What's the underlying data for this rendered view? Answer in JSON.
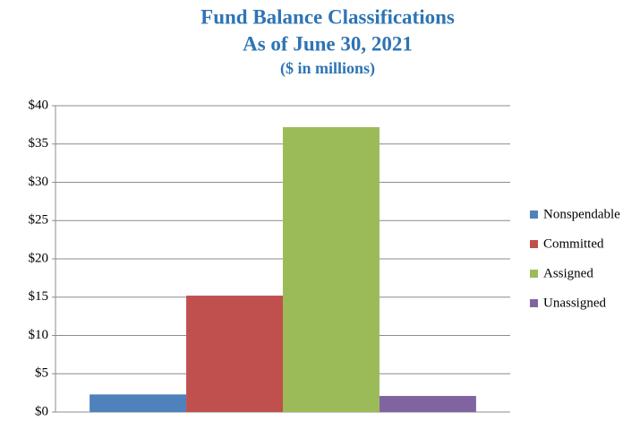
{
  "chart_data": {
    "type": "bar",
    "title": [
      "Fund Balance Classifications",
      "As of June 30, 2021",
      "($ in millions)"
    ],
    "categories": [
      null
    ],
    "series": [
      {
        "name": "Nonspendable",
        "color": "#4f81bd",
        "values": [
          2.3
        ]
      },
      {
        "name": "Committed",
        "color": "#c0504d",
        "values": [
          15.2
        ]
      },
      {
        "name": "Assigned",
        "color": "#9bbb59",
        "values": [
          37.2
        ]
      },
      {
        "name": "Unassigned",
        "color": "#8064a2",
        "values": [
          2.1
        ]
      }
    ],
    "ylim": [
      0,
      40
    ],
    "yticks": [
      {
        "value": 0,
        "label": "$0"
      },
      {
        "value": 5,
        "label": "$5"
      },
      {
        "value": 10,
        "label": "$10"
      },
      {
        "value": 15,
        "label": "$15"
      },
      {
        "value": 20,
        "label": "$20"
      },
      {
        "value": 25,
        "label": "$25"
      },
      {
        "value": 30,
        "label": "$30"
      },
      {
        "value": 35,
        "label": "$35"
      },
      {
        "value": 40,
        "label": "$40"
      }
    ],
    "grid": true,
    "legend": "right"
  }
}
